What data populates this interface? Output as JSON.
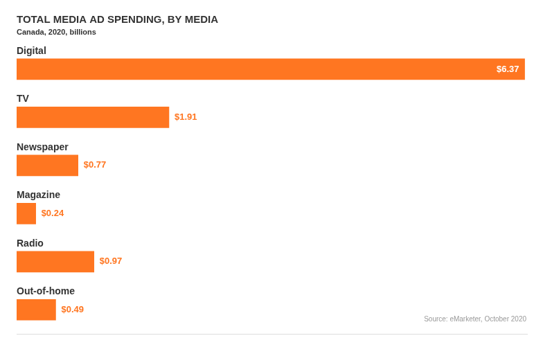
{
  "chart_data": {
    "type": "bar",
    "orientation": "horizontal",
    "title": "TOTAL MEDIA AD SPENDING, BY MEDIA",
    "subtitle": "Canada, 2020, billions",
    "annotations": [
      "Source: eMarketer, October 2020"
    ],
    "categories": [
      "Digital",
      "TV",
      "Newspaper",
      "Magazine",
      "Radio",
      "Out-of-home"
    ],
    "values": [
      6.37,
      1.91,
      0.77,
      0.24,
      0.97,
      0.49
    ],
    "value_labels": [
      "$6.37",
      "$1.91",
      "$0.77",
      "$0.24",
      "$0.97",
      "$0.49"
    ],
    "color": "#ff7621",
    "xlim": [
      0,
      6.4
    ],
    "grid": false,
    "tick_labels": false,
    "data_labels": true
  }
}
